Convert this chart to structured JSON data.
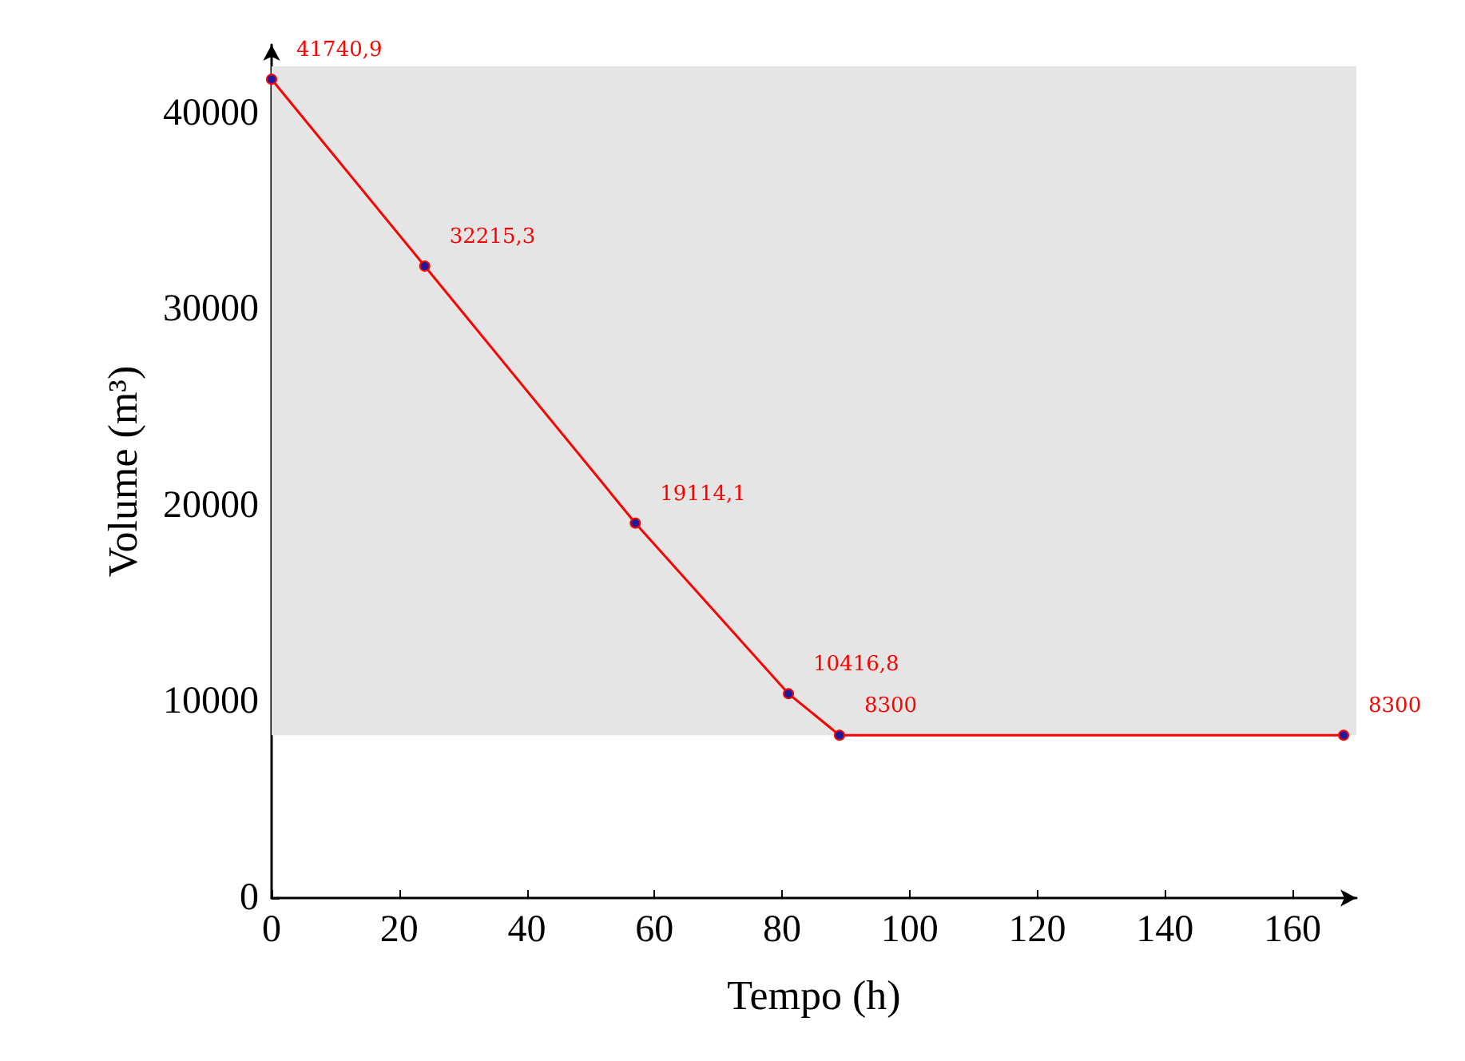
{
  "chart_data": {
    "type": "line",
    "xlabel": "Tempo (h)",
    "ylabel": "Volume (m³)",
    "x": [
      0,
      24,
      57,
      81,
      89,
      168
    ],
    "series": [
      {
        "color": "#ff0000",
        "values": [
          41740.9,
          32215.3,
          19114.1,
          10416.8,
          8300,
          8300
        ],
        "value_labels": [
          "41740,9",
          "32215,3",
          "19114,1",
          "10416,8",
          "8300",
          "8300"
        ]
      }
    ],
    "xlim": [
      0,
      170
    ],
    "xticks": [
      0,
      20,
      40,
      60,
      80,
      100,
      120,
      140,
      160
    ],
    "ylim": [
      0,
      43500
    ],
    "yticks": [
      0,
      10000,
      20000,
      30000,
      40000
    ],
    "bands": [
      {
        "axis": "y",
        "from": 8300,
        "to": 42400,
        "color": "#e5e5e5"
      }
    ],
    "marker": "circle",
    "line_style": "solid",
    "grid": false
  }
}
